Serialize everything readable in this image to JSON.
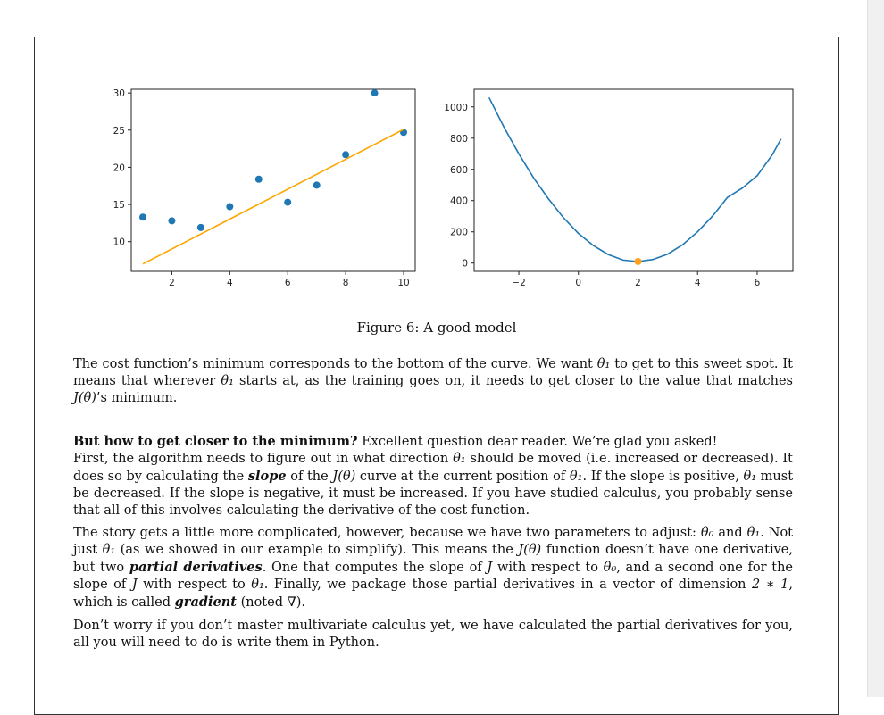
{
  "left_chart": {
    "y_ticks": [
      "10",
      "15",
      "20",
      "25",
      "30"
    ],
    "x_ticks": [
      "2",
      "4",
      "6",
      "8",
      "10"
    ]
  },
  "right_chart": {
    "y_ticks": [
      "0",
      "200",
      "400",
      "600",
      "800",
      "1000"
    ],
    "x_ticks": [
      "−2",
      "0",
      "2",
      "4",
      "6"
    ]
  },
  "chart_data": [
    {
      "type": "scatter",
      "title": "",
      "xlabel": "",
      "ylabel": "",
      "xlim": [
        0.6,
        10.4
      ],
      "ylim": [
        6,
        30.5
      ],
      "x_ticks": [
        2,
        4,
        6,
        8,
        10
      ],
      "y_ticks": [
        10,
        15,
        20,
        25,
        30
      ],
      "series": [
        {
          "type": "scatter",
          "color": "#1f77b4",
          "x": [
            1,
            2,
            3,
            4,
            5,
            6,
            7,
            8,
            9,
            10
          ],
          "y": [
            13.3,
            12.8,
            11.9,
            14.7,
            18.4,
            15.3,
            17.6,
            21.7,
            30.0,
            24.7
          ]
        },
        {
          "type": "line",
          "color": "#ffa500",
          "x": [
            1,
            10
          ],
          "y": [
            7.0,
            25.1
          ]
        }
      ],
      "grid": false
    },
    {
      "type": "line",
      "title": "",
      "xlabel": "",
      "ylabel": "",
      "xlim": [
        -3.5,
        7.2
      ],
      "ylim": [
        -53,
        1113
      ],
      "x_ticks": [
        -2,
        0,
        2,
        4,
        6
      ],
      "y_ticks": [
        0,
        200,
        400,
        600,
        800,
        1000
      ],
      "series": [
        {
          "type": "line",
          "color": "#1f77b4",
          "x": [
            -3.0,
            -2.5,
            -2.0,
            -1.5,
            -1.0,
            -0.5,
            0.0,
            0.5,
            1.0,
            1.5,
            2.0,
            2.5,
            3.0,
            3.5,
            4.0,
            4.5,
            5.0,
            5.5,
            6.0,
            6.5,
            6.8
          ],
          "y": [
            1060,
            870,
            700,
            545,
            410,
            290,
            190,
            112,
            55,
            19,
            10,
            23,
            58,
            118,
            200,
            300,
            420,
            480,
            560,
            690,
            795
          ]
        },
        {
          "type": "scatter",
          "color": "#ff9f1c",
          "x": [
            2.0
          ],
          "y": [
            10
          ]
        }
      ],
      "grid": false
    }
  ],
  "figure_caption": "Figure 6: A good model",
  "para1": {
    "t1": "The cost function’s minimum corresponds to the bottom of the curve. We want ",
    "theta1": "θ₁",
    "t2": " to get to this sweet spot. It means that wherever ",
    "t3": " starts at, as the training goes on, it needs to get closer to the value that matches ",
    "J": "J(θ)",
    "t4": "’s minimum."
  },
  "para2": {
    "heading": "But how to get closer to the minimum?",
    "t1": "  Excellent question dear reader. We’re glad you asked!",
    "t2": "First, the algorithm needs to figure out in what direction ",
    "theta1": "θ₁",
    "t3": " should be moved (i.e. increased or decreased). It does so by calculating the ",
    "slope": "slope",
    "t4": " of the ",
    "J": "J(θ)",
    "t5": " curve at the current position of ",
    "t6": ". If the slope is positive, ",
    "t7": " must be decreased. If the slope is negative, it must be increased. If you have studied calculus, you probably sense that all of this involves calculating the derivative of the cost function."
  },
  "para3": {
    "t1": "The story gets a little more complicated, however, because we have two parameters to adjust: ",
    "theta0": "θ₀",
    "and": " and ",
    "theta1": "θ₁",
    "t2": ". Not just ",
    "t3": " (as we showed in our example to simplify). This means the ",
    "J": "J(θ)",
    "t4": " function doesn’t have one derivative, but two ",
    "partial": "partial derivatives",
    "t5": ". One that computes the slope of ",
    "Jv": "J",
    "t6": " with respect to ",
    "t7": ", and a second one for the slope of ",
    "t8": ". Finally, we package those partial derivatives in a vector of dimension ",
    "dim": "2 ∗ 1",
    "t9": ", which is called ",
    "gradient": "gradient",
    "t10": " (noted ∇)."
  },
  "para4": {
    "text": "Don’t worry if you don’t master multivariate calculus yet, we have calculated the partial derivatives for you, all you will need to do is write them in Python."
  },
  "colors": {
    "scatter_blue": "#1f77b4",
    "fit_orange": "#ffa500",
    "min_orange": "#ff9f1c"
  }
}
